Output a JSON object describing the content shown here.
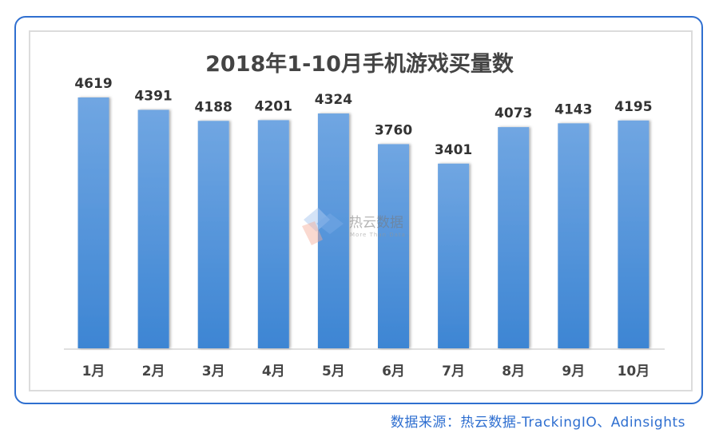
{
  "chart_data": {
    "type": "bar",
    "title": "2018年1-10月手机游戏买量数",
    "categories": [
      "1月",
      "2月",
      "3月",
      "4月",
      "5月",
      "6月",
      "7月",
      "8月",
      "9月",
      "10月"
    ],
    "values": [
      4619,
      4391,
      4188,
      4201,
      4324,
      3760,
      3401,
      4073,
      4143,
      4195
    ],
    "xlabel": "",
    "ylabel": "",
    "ylim": [
      0,
      4619
    ],
    "grid": false,
    "bar_color_top": "#70a6e2",
    "bar_color_bottom": "#3d85d3"
  },
  "watermark": {
    "name": "热云数据",
    "slogan": "More Than Data"
  },
  "source": "数据来源：热云数据-TrackingIO、Adinsights",
  "colors": {
    "frame": "#2f6fd0",
    "title": "#444444"
  }
}
